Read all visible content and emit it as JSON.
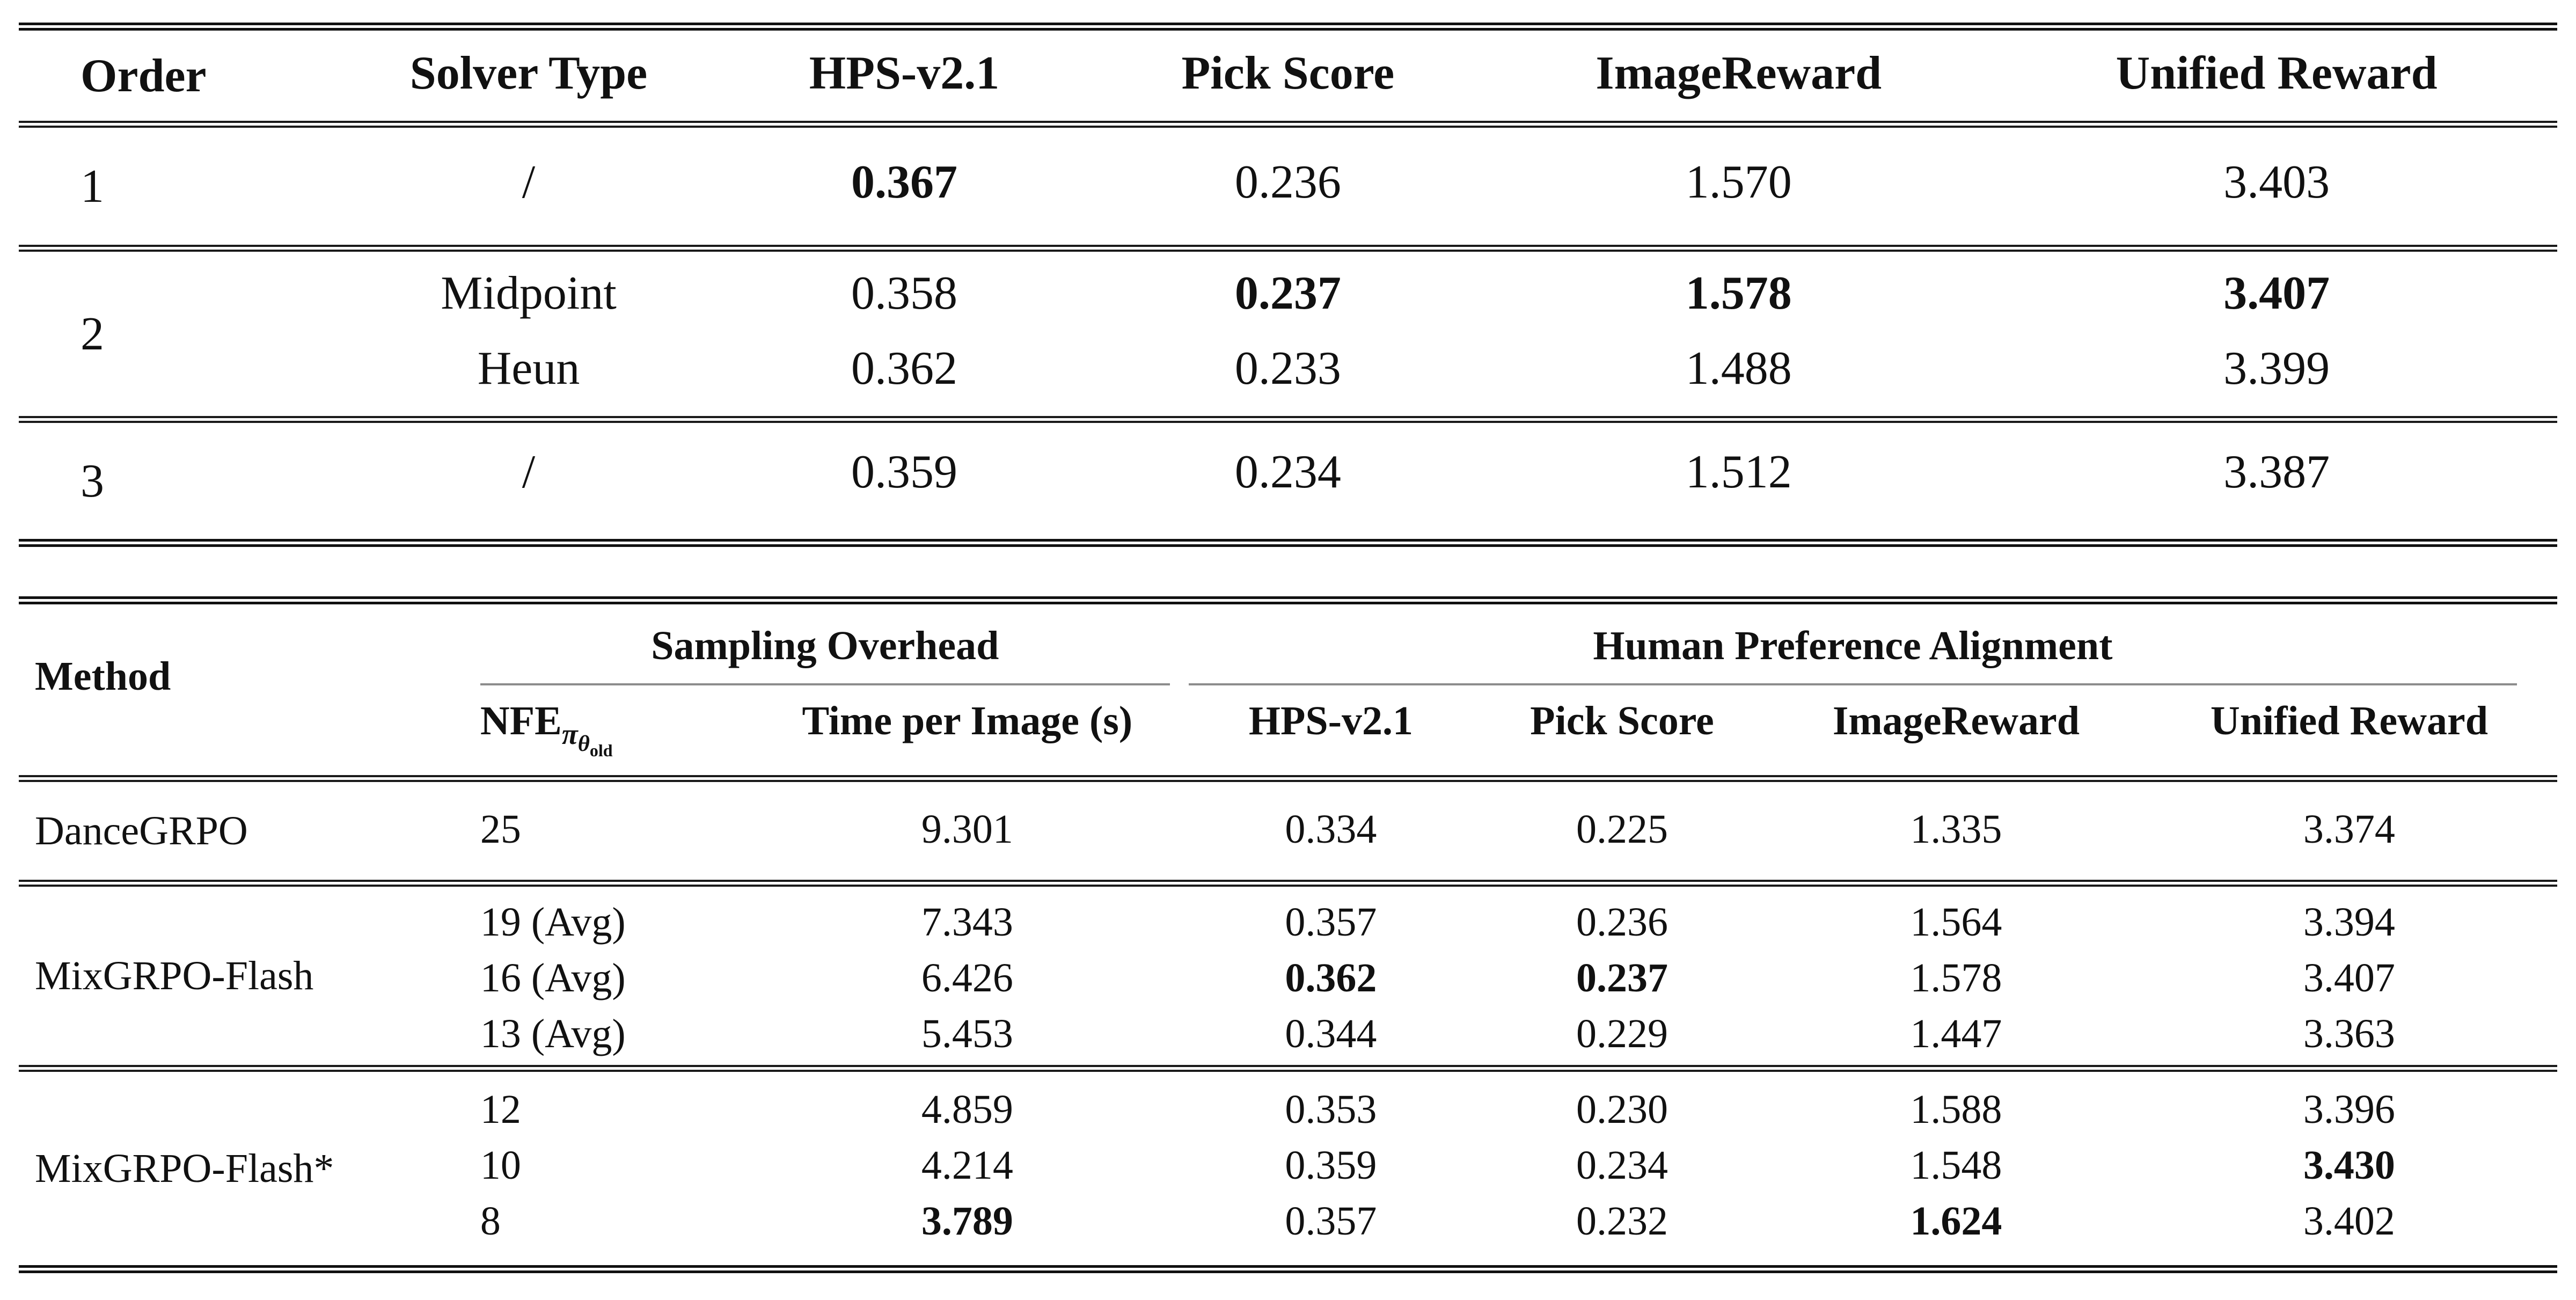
{
  "colors": {
    "background": "#ffffff",
    "text": "#111111",
    "rule": "#1a1a1a",
    "cmidrule": "#8c8c8c"
  },
  "table1": {
    "headers": {
      "order": "Order",
      "solver": "Solver Type",
      "hps": "HPS-v2.1",
      "pick": "Pick Score",
      "image": "ImageReward",
      "unified": "Unified Reward"
    },
    "rows": [
      {
        "order": "1",
        "solver": "/",
        "hps": "0.367",
        "pick": "0.236",
        "image": "1.570",
        "unified": "3.403"
      },
      {
        "order": "2",
        "solver": "Midpoint",
        "hps": "0.358",
        "pick": "0.237",
        "image": "1.578",
        "unified": "3.407"
      },
      {
        "solver": "Heun",
        "hps": "0.362",
        "pick": "0.233",
        "image": "1.488",
        "unified": "3.399"
      },
      {
        "order": "3",
        "solver": "/",
        "hps": "0.359",
        "pick": "0.234",
        "image": "1.512",
        "unified": "3.387"
      }
    ]
  },
  "table2": {
    "method_header": "Method",
    "groups": {
      "sampling": "Sampling Overhead",
      "alignment": "Human Preference Alignment"
    },
    "subheaders": {
      "nfe_base": "NFE",
      "nfe_sub_pi": "π",
      "nfe_sub_theta": "θ",
      "nfe_sub_old": "old",
      "time": "Time per Image (s)",
      "hps": "HPS-v2.1",
      "pick": "Pick Score",
      "image": "ImageReward",
      "unified": "Unified Reward"
    },
    "rows": [
      {
        "method": "DanceGRPO",
        "nfe": "25",
        "time": "9.301",
        "hps": "0.334",
        "pick": "0.225",
        "image": "1.335",
        "unified": "3.374"
      },
      {
        "method": "MixGRPO-Flash",
        "nfe": "19 (Avg)",
        "time": "7.343",
        "hps": "0.357",
        "pick": "0.236",
        "image": "1.564",
        "unified": "3.394"
      },
      {
        "nfe": "16 (Avg)",
        "time": "6.426",
        "hps": "0.362",
        "pick": "0.237",
        "image": "1.578",
        "unified": "3.407"
      },
      {
        "nfe": "13 (Avg)",
        "time": "5.453",
        "hps": "0.344",
        "pick": "0.229",
        "image": "1.447",
        "unified": "3.363"
      },
      {
        "method": "MixGRPO-Flash*",
        "nfe": "12",
        "time": "4.859",
        "hps": "0.353",
        "pick": "0.230",
        "image": "1.588",
        "unified": "3.396"
      },
      {
        "nfe": "10",
        "time": "4.214",
        "hps": "0.359",
        "pick": "0.234",
        "image": "1.548",
        "unified": "3.430"
      },
      {
        "nfe": "8",
        "time": "3.789",
        "hps": "0.357",
        "pick": "0.232",
        "image": "1.624",
        "unified": "3.402"
      }
    ]
  }
}
